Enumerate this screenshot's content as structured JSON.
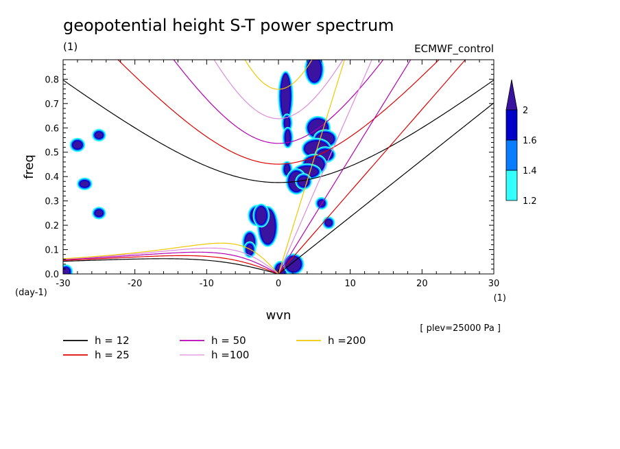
{
  "chart_data": {
    "type": "contour",
    "title": "geopotential height S-T power spectrum",
    "subtitle_left": "(1)",
    "subtitle_right": "ECMWF_control",
    "xlabel": "wvn",
    "ylabel": "freq",
    "x_unit": "(1)",
    "y_unit": "(day-1)",
    "xlim": [
      -30,
      30
    ],
    "ylim": [
      0,
      0.88
    ],
    "x_ticks": [
      -30,
      -20,
      -10,
      0,
      10,
      20,
      30
    ],
    "x_tick_labels": [
      "-30",
      "-20",
      "-10",
      "0",
      "10",
      "20",
      "30"
    ],
    "y_ticks": [
      0,
      0.1,
      0.2,
      0.3,
      0.4,
      0.5,
      0.6,
      0.7,
      0.8
    ],
    "y_tick_labels": [
      "0.0",
      "0.1",
      "0.2",
      "0.3",
      "0.4",
      "0.5",
      "0.6",
      "0.7",
      "0.8"
    ],
    "note": "[ plev=25000 Pa ]",
    "colorbar": {
      "levels": [
        1.2,
        1.4,
        1.6,
        2
      ],
      "level_labels": [
        "1.2",
        "1.4",
        "1.6",
        "2"
      ],
      "colors": [
        "#33ffff",
        "#0a7cff",
        "#0000c8",
        "#3a14a0"
      ]
    },
    "dispersion_curves": [
      {
        "name": "h = 12",
        "h": 12,
        "color": "#000000"
      },
      {
        "name": "h = 25",
        "h": 25,
        "color": "#e00000"
      },
      {
        "name": "h = 50",
        "h": 50,
        "color": "#b400b4"
      },
      {
        "name": "h =100",
        "h": 100,
        "color": "#dc8cdc"
      },
      {
        "name": "h =200",
        "h": 200,
        "color": "#f0c800"
      }
    ],
    "blobs": [
      {
        "x": 1.0,
        "y": 0.73,
        "rx": 0.6,
        "ry": 0.09,
        "level": 3
      },
      {
        "x": 1.2,
        "y": 0.62,
        "rx": 0.3,
        "ry": 0.025,
        "level": 3
      },
      {
        "x": 1.3,
        "y": 0.56,
        "rx": 0.3,
        "ry": 0.03,
        "level": 3
      },
      {
        "x": 1.2,
        "y": 0.43,
        "rx": 0.3,
        "ry": 0.02,
        "level": 3
      },
      {
        "x": 0.3,
        "y": 0.015,
        "rx": 0.6,
        "ry": 0.025,
        "level": 3
      },
      {
        "x": 2.1,
        "y": 0.04,
        "rx": 1.0,
        "ry": 0.03,
        "level": 3
      },
      {
        "x": -1.5,
        "y": 0.195,
        "rx": 1.0,
        "ry": 0.07,
        "level": 3
      },
      {
        "x": -3.0,
        "y": 0.24,
        "rx": 0.8,
        "ry": 0.03,
        "level": 3
      },
      {
        "x": -2.4,
        "y": 0.24,
        "rx": 0.7,
        "ry": 0.035,
        "level": 3
      },
      {
        "x": -4.0,
        "y": 0.13,
        "rx": 0.6,
        "ry": 0.035,
        "level": 3
      },
      {
        "x": -4.0,
        "y": 0.1,
        "rx": 0.4,
        "ry": 0.02,
        "level": 3
      },
      {
        "x": 5.0,
        "y": 0.84,
        "rx": 0.9,
        "ry": 0.05,
        "level": 3
      },
      {
        "x": 5.5,
        "y": 0.6,
        "rx": 1.3,
        "ry": 0.035,
        "level": 3
      },
      {
        "x": 6.5,
        "y": 0.555,
        "rx": 1.2,
        "ry": 0.025,
        "level": 3
      },
      {
        "x": 5.3,
        "y": 0.515,
        "rx": 1.6,
        "ry": 0.03,
        "level": 3
      },
      {
        "x": 6.5,
        "y": 0.49,
        "rx": 1.0,
        "ry": 0.02,
        "level": 3
      },
      {
        "x": 5.0,
        "y": 0.45,
        "rx": 1.3,
        "ry": 0.03,
        "level": 3
      },
      {
        "x": 4.0,
        "y": 0.42,
        "rx": 1.5,
        "ry": 0.02,
        "level": 3
      },
      {
        "x": 2.5,
        "y": 0.38,
        "rx": 1.0,
        "ry": 0.04,
        "level": 3
      },
      {
        "x": 3.5,
        "y": 0.38,
        "rx": 0.7,
        "ry": 0.02,
        "level": 3
      },
      {
        "x": 6.0,
        "y": 0.29,
        "rx": 0.4,
        "ry": 0.012,
        "level": 3
      },
      {
        "x": 7.0,
        "y": 0.21,
        "rx": 0.4,
        "ry": 0.012,
        "level": 3
      },
      {
        "x": -28.0,
        "y": 0.53,
        "rx": 0.6,
        "ry": 0.015,
        "level": 3
      },
      {
        "x": -25.0,
        "y": 0.57,
        "rx": 0.5,
        "ry": 0.012,
        "level": 3
      },
      {
        "x": -25.0,
        "y": 0.25,
        "rx": 0.5,
        "ry": 0.012,
        "level": 3
      },
      {
        "x": -27.0,
        "y": 0.37,
        "rx": 0.6,
        "ry": 0.012,
        "level": 3
      },
      {
        "x": -29.6,
        "y": 0.01,
        "rx": 0.5,
        "ry": 0.015,
        "level": 3
      }
    ]
  }
}
